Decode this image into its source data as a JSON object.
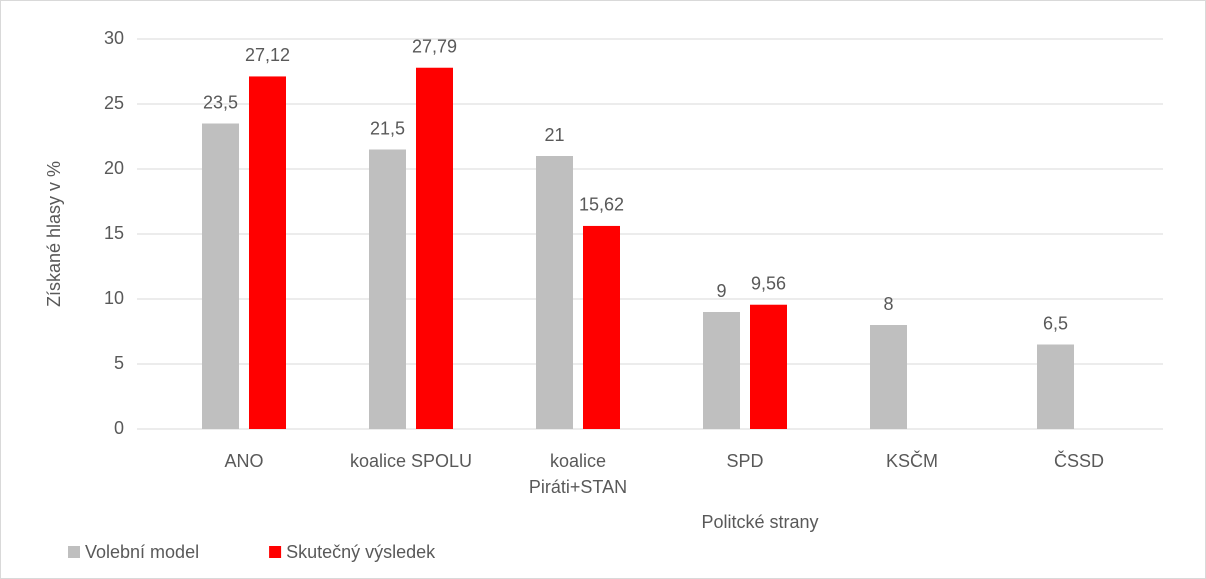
{
  "chart_data": {
    "type": "bar",
    "categories": [
      "ANO",
      "koalice SPOLU",
      "koalice Piráti+STAN",
      "SPD",
      "KSČM",
      "ČSSD"
    ],
    "series": [
      {
        "name": "Volební model",
        "color": "#bfbfbf",
        "values": [
          23.5,
          21.5,
          21,
          9,
          8,
          6.5
        ],
        "value_labels": [
          "23,5",
          "21,5",
          "21",
          "9",
          "8",
          "6,5"
        ]
      },
      {
        "name": "Skutečný výsledek",
        "color": "#ff0000",
        "values": [
          27.12,
          27.79,
          15.62,
          9.56,
          null,
          null
        ],
        "value_labels": [
          "27,12",
          "27,79",
          "15,62",
          "9,56",
          null,
          null
        ]
      }
    ],
    "y_label": "Získané hlasy v %",
    "x_label": "Politcké strany",
    "ylim": [
      0,
      30
    ],
    "yticks": [
      0,
      5,
      10,
      15,
      20,
      25,
      30
    ],
    "grid": true,
    "legend": "bottom-left"
  }
}
